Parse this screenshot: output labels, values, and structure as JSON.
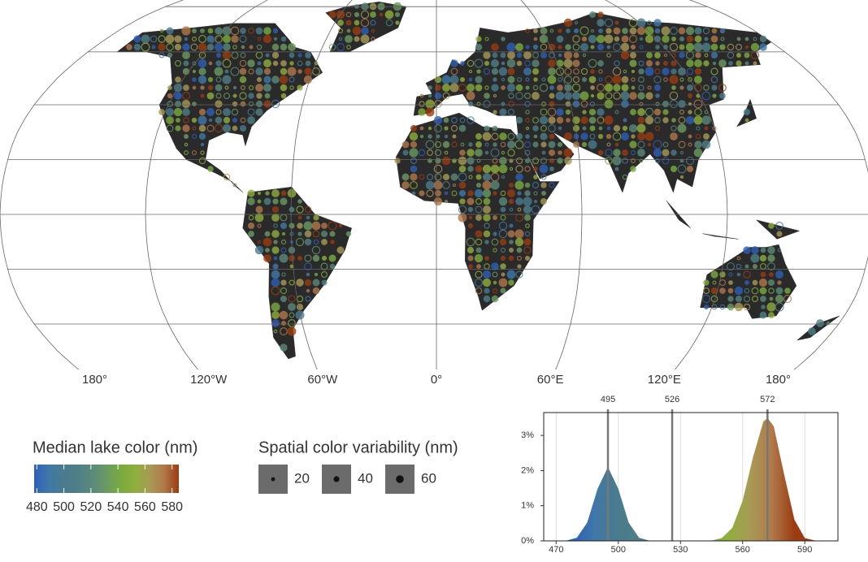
{
  "map": {
    "lon_labels": [
      "180°",
      "120°W",
      "60°W",
      "0°",
      "60°E",
      "120°E",
      "180°"
    ]
  },
  "palette": [
    "#2d5fb8",
    "#3f78a8",
    "#4a7b8f",
    "#4f7f88",
    "#5a8a7a",
    "#6a9a62",
    "#7aaa3e",
    "#8fae3c",
    "#a89a55",
    "#b0784a",
    "#9a3c10"
  ],
  "legend_color": {
    "title": "Median lake color (nm)",
    "lim": [
      478,
      585
    ],
    "ticks": [
      480,
      500,
      520,
      540,
      560,
      580
    ]
  },
  "legend_size": {
    "title": "Spatial color variability (nm)",
    "values": [
      20,
      40,
      60
    ]
  },
  "chart_data": {
    "type": "area",
    "x": [
      465,
      470,
      475,
      480,
      485,
      490,
      495,
      500,
      505,
      510,
      515,
      520,
      525,
      530,
      535,
      540,
      545,
      550,
      555,
      560,
      565,
      570,
      572,
      575,
      580,
      585,
      590,
      595,
      600,
      605
    ],
    "values": [
      0,
      0,
      0.01,
      0.09,
      0.52,
      1.48,
      2.1,
      1.48,
      0.52,
      0.09,
      0.01,
      0,
      0,
      0,
      0,
      0,
      0.01,
      0.08,
      0.37,
      1.14,
      2.38,
      3.39,
      3.5,
      3.26,
      1.9,
      0.6,
      0.08,
      0.01,
      0,
      0
    ],
    "xlim": [
      464,
      606
    ],
    "ylim": [
      0,
      3.65
    ],
    "xticks": [
      470,
      500,
      530,
      560,
      590
    ],
    "yticks": [
      {
        "value": 0,
        "label": "0%"
      },
      {
        "value": 1,
        "label": "1%"
      },
      {
        "value": 2,
        "label": "2%"
      },
      {
        "value": 3,
        "label": "3%"
      }
    ],
    "markers": [
      495,
      526,
      572
    ],
    "grid": true
  }
}
